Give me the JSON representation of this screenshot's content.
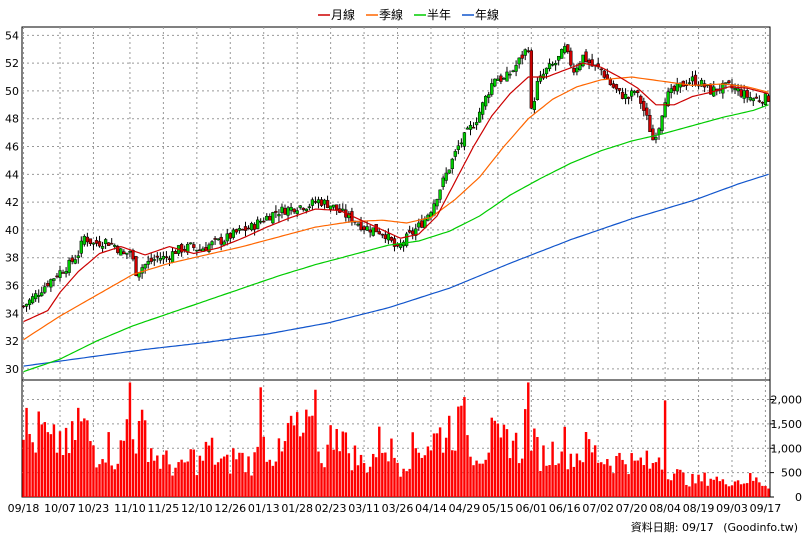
{
  "chart_data": {
    "type": "candlestick",
    "legend": [
      {
        "name": "月線",
        "color": "#cc0000"
      },
      {
        "name": "季線",
        "color": "#ff6600"
      },
      {
        "name": "半年",
        "color": "#00cc00"
      },
      {
        "name": "年線",
        "color": "#1155cc"
      }
    ],
    "price_axis": {
      "range": [
        29.2,
        54.6
      ],
      "ticks": [
        30,
        32,
        34,
        36,
        38,
        40,
        42,
        44,
        46,
        48,
        50,
        52,
        54
      ]
    },
    "volume_axis": {
      "range": [
        0,
        2400
      ],
      "ticks": [
        0,
        500,
        1000,
        1500,
        2000
      ],
      "tick_labels": [
        "0",
        "500",
        "1,000",
        "1,500",
        "2,000"
      ]
    },
    "x_labels": [
      "09/18",
      "10/07",
      "10/23",
      "11/10",
      "11/25",
      "12/10",
      "12/26",
      "01/13",
      "01/28",
      "02/23",
      "03/11",
      "03/26",
      "04/14",
      "04/29",
      "05/15",
      "06/01",
      "06/16",
      "07/02",
      "07/20",
      "08/04",
      "08/19",
      "09/03",
      "09/17"
    ],
    "x_label_index": [
      0,
      12,
      23,
      35,
      46,
      57,
      68,
      79,
      90,
      101,
      112,
      123,
      134,
      145,
      156,
      167,
      178,
      189,
      200,
      211,
      222,
      233,
      244
    ],
    "n_bars": 246,
    "close_anchors": [
      [
        0,
        34.5
      ],
      [
        4,
        35.3
      ],
      [
        8,
        36.2
      ],
      [
        12,
        37.0
      ],
      [
        15,
        37.5
      ],
      [
        18,
        38.3
      ],
      [
        20,
        39.5
      ],
      [
        23,
        39.0
      ],
      [
        27,
        39.2
      ],
      [
        30,
        38.9
      ],
      [
        33,
        38.2
      ],
      [
        35,
        38.5
      ],
      [
        37,
        37.0
      ],
      [
        40,
        37.5
      ],
      [
        44,
        38.0
      ],
      [
        47,
        38.0
      ],
      [
        50,
        38.5
      ],
      [
        55,
        38.8
      ],
      [
        58,
        38.6
      ],
      [
        62,
        39.0
      ],
      [
        66,
        39.3
      ],
      [
        70,
        39.8
      ],
      [
        75,
        40.2
      ],
      [
        79,
        40.8
      ],
      [
        83,
        41.3
      ],
      [
        87,
        41.5
      ],
      [
        90,
        41.7
      ],
      [
        94,
        41.8
      ],
      [
        97,
        42.1
      ],
      [
        101,
        41.8
      ],
      [
        104,
        41.3
      ],
      [
        108,
        40.8
      ],
      [
        112,
        40.2
      ],
      [
        116,
        40.0
      ],
      [
        119,
        39.7
      ],
      [
        123,
        38.5
      ],
      [
        125,
        39.2
      ],
      [
        128,
        39.8
      ],
      [
        131,
        40.5
      ],
      [
        134,
        41.5
      ],
      [
        137,
        43.0
      ],
      [
        140,
        44.5
      ],
      [
        143,
        46.0
      ],
      [
        146,
        47.0
      ],
      [
        149,
        48.0
      ],
      [
        152,
        49.5
      ],
      [
        155,
        51.0
      ],
      [
        158,
        50.8
      ],
      [
        161,
        51.5
      ],
      [
        164,
        52.5
      ],
      [
        166,
        53.2
      ],
      [
        167,
        48.5
      ],
      [
        169,
        50.5
      ],
      [
        172,
        51.5
      ],
      [
        175,
        52.0
      ],
      [
        178,
        53.0
      ],
      [
        181,
        51.5
      ],
      [
        184,
        52.5
      ],
      [
        187,
        51.8
      ],
      [
        190,
        51.5
      ],
      [
        193,
        50.5
      ],
      [
        196,
        49.8
      ],
      [
        199,
        49.5
      ],
      [
        201,
        50.0
      ],
      [
        203,
        49.2
      ],
      [
        205,
        48.0
      ],
      [
        207,
        46.5
      ],
      [
        209,
        47.5
      ],
      [
        211,
        49.5
      ],
      [
        214,
        50.0
      ],
      [
        217,
        50.5
      ],
      [
        220,
        50.8
      ],
      [
        223,
        50.5
      ],
      [
        226,
        50.0
      ],
      [
        229,
        50.2
      ],
      [
        232,
        50.3
      ],
      [
        235,
        50.0
      ],
      [
        238,
        49.6
      ],
      [
        241,
        49.4
      ],
      [
        245,
        49.5
      ]
    ],
    "volume_anchors": [
      [
        0,
        1700
      ],
      [
        3,
        1200
      ],
      [
        6,
        1500
      ],
      [
        9,
        1100
      ],
      [
        12,
        1300
      ],
      [
        15,
        1000
      ],
      [
        18,
        1700
      ],
      [
        21,
        1400
      ],
      [
        24,
        1000
      ],
      [
        27,
        1200
      ],
      [
        30,
        900
      ],
      [
        33,
        1100
      ],
      [
        35,
        2350
      ],
      [
        37,
        1300
      ],
      [
        40,
        1500
      ],
      [
        43,
        900
      ],
      [
        46,
        800
      ],
      [
        49,
        700
      ],
      [
        52,
        600
      ],
      [
        55,
        900
      ],
      [
        58,
        750
      ],
      [
        61,
        1100
      ],
      [
        64,
        800
      ],
      [
        67,
        700
      ],
      [
        70,
        950
      ],
      [
        73,
        750
      ],
      [
        76,
        800
      ],
      [
        79,
        1200
      ],
      [
        82,
        1000
      ],
      [
        85,
        900
      ],
      [
        88,
        1600
      ],
      [
        91,
        1300
      ],
      [
        94,
        1500
      ],
      [
        97,
        900
      ],
      [
        100,
        1000
      ],
      [
        103,
        1800
      ],
      [
        106,
        1100
      ],
      [
        109,
        900
      ],
      [
        112,
        700
      ],
      [
        115,
        900
      ],
      [
        118,
        1300
      ],
      [
        121,
        1000
      ],
      [
        124,
        750
      ],
      [
        127,
        1000
      ],
      [
        130,
        1100
      ],
      [
        133,
        1200
      ],
      [
        136,
        1300
      ],
      [
        139,
        1500
      ],
      [
        142,
        1600
      ],
      [
        145,
        1400
      ],
      [
        148,
        1100
      ],
      [
        151,
        1000
      ],
      [
        154,
        1300
      ],
      [
        157,
        1100
      ],
      [
        160,
        1400
      ],
      [
        163,
        1000
      ],
      [
        166,
        1900
      ],
      [
        168,
        1100
      ],
      [
        171,
        900
      ],
      [
        174,
        1000
      ],
      [
        177,
        1300
      ],
      [
        180,
        900
      ],
      [
        183,
        1000
      ],
      [
        186,
        1100
      ],
      [
        189,
        900
      ],
      [
        192,
        850
      ],
      [
        195,
        800
      ],
      [
        198,
        900
      ],
      [
        201,
        700
      ],
      [
        204,
        800
      ],
      [
        207,
        650
      ],
      [
        209,
        1000
      ],
      [
        212,
        650
      ],
      [
        215,
        500
      ],
      [
        218,
        400
      ],
      [
        221,
        350
      ],
      [
        224,
        400
      ],
      [
        227,
        450
      ],
      [
        230,
        300
      ],
      [
        233,
        400
      ],
      [
        236,
        350
      ],
      [
        239,
        400
      ],
      [
        242,
        350
      ],
      [
        245,
        250
      ]
    ],
    "volume_spikes": [
      [
        35,
        2350
      ],
      [
        78,
        2250
      ],
      [
        96,
        2200
      ],
      [
        145,
        2050
      ],
      [
        166,
        2350
      ],
      [
        211,
        1980
      ]
    ],
    "ma_monthly": [
      [
        0,
        33.4
      ],
      [
        8,
        34.2
      ],
      [
        12,
        35.5
      ],
      [
        18,
        37.0
      ],
      [
        25,
        38.3
      ],
      [
        32,
        38.8
      ],
      [
        40,
        38.2
      ],
      [
        48,
        38.8
      ],
      [
        56,
        38.3
      ],
      [
        64,
        38.7
      ],
      [
        72,
        39.4
      ],
      [
        80,
        40.2
      ],
      [
        88,
        40.9
      ],
      [
        96,
        41.5
      ],
      [
        104,
        41.4
      ],
      [
        110,
        40.8
      ],
      [
        118,
        40.0
      ],
      [
        124,
        39.4
      ],
      [
        130,
        39.7
      ],
      [
        136,
        41.0
      ],
      [
        142,
        43.5
      ],
      [
        148,
        46.0
      ],
      [
        154,
        48.2
      ],
      [
        160,
        49.8
      ],
      [
        166,
        51.0
      ],
      [
        172,
        51.0
      ],
      [
        178,
        51.5
      ],
      [
        184,
        52.0
      ],
      [
        190,
        51.7
      ],
      [
        196,
        51.0
      ],
      [
        202,
        50.2
      ],
      [
        208,
        49.0
      ],
      [
        214,
        49.0
      ],
      [
        220,
        49.6
      ],
      [
        226,
        49.9
      ],
      [
        232,
        50.3
      ],
      [
        238,
        50.2
      ],
      [
        245,
        49.8
      ]
    ],
    "ma_quarterly": [
      [
        0,
        32.1
      ],
      [
        12,
        33.8
      ],
      [
        24,
        35.3
      ],
      [
        36,
        36.8
      ],
      [
        48,
        37.6
      ],
      [
        60,
        38.2
      ],
      [
        72,
        38.8
      ],
      [
        84,
        39.5
      ],
      [
        96,
        40.2
      ],
      [
        108,
        40.6
      ],
      [
        118,
        40.7
      ],
      [
        126,
        40.5
      ],
      [
        134,
        40.9
      ],
      [
        142,
        42.2
      ],
      [
        150,
        43.8
      ],
      [
        158,
        46.0
      ],
      [
        166,
        48.0
      ],
      [
        174,
        49.4
      ],
      [
        182,
        50.3
      ],
      [
        190,
        50.8
      ],
      [
        200,
        51.0
      ],
      [
        210,
        50.7
      ],
      [
        220,
        50.4
      ],
      [
        230,
        50.5
      ],
      [
        238,
        50.3
      ],
      [
        245,
        49.9
      ]
    ],
    "ma_halfyear": [
      [
        0,
        29.8
      ],
      [
        12,
        30.7
      ],
      [
        24,
        32.0
      ],
      [
        36,
        33.1
      ],
      [
        48,
        34.0
      ],
      [
        60,
        34.9
      ],
      [
        72,
        35.8
      ],
      [
        84,
        36.7
      ],
      [
        96,
        37.5
      ],
      [
        108,
        38.2
      ],
      [
        120,
        38.9
      ],
      [
        130,
        39.2
      ],
      [
        140,
        39.9
      ],
      [
        150,
        41.0
      ],
      [
        160,
        42.5
      ],
      [
        170,
        43.7
      ],
      [
        180,
        44.8
      ],
      [
        190,
        45.7
      ],
      [
        200,
        46.4
      ],
      [
        210,
        46.9
      ],
      [
        220,
        47.5
      ],
      [
        230,
        48.1
      ],
      [
        240,
        48.6
      ],
      [
        245,
        49.0
      ]
    ],
    "ma_yearly": [
      [
        0,
        30.2
      ],
      [
        20,
        30.8
      ],
      [
        40,
        31.4
      ],
      [
        60,
        31.9
      ],
      [
        80,
        32.5
      ],
      [
        100,
        33.3
      ],
      [
        120,
        34.4
      ],
      [
        140,
        35.8
      ],
      [
        160,
        37.6
      ],
      [
        180,
        39.3
      ],
      [
        200,
        40.8
      ],
      [
        220,
        42.1
      ],
      [
        235,
        43.3
      ],
      [
        245,
        44.0
      ]
    ],
    "up_color": "#00cc00",
    "down_color": "#cc0000",
    "volume_color": "#ff0000",
    "grid": true
  },
  "footer": {
    "date_label": "資料日期: 09/17",
    "source": "(Goodinfo.tw)"
  }
}
